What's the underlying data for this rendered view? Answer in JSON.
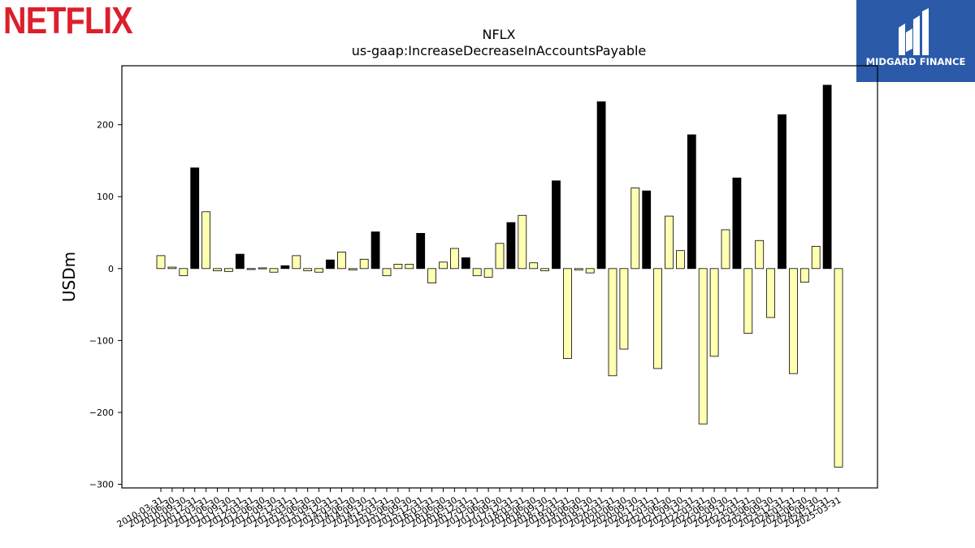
{
  "logos": {
    "left_text": "NETFLIX",
    "left_color": "#db202c",
    "right_text": "MIDGARD FINANCE",
    "right_color": "#2a5aa8"
  },
  "chart_data": {
    "type": "bar",
    "title": "NFLX",
    "subtitle": "us-gaap:IncreaseDecreaseInAccountsPayable",
    "xlabel": "",
    "ylabel": "USDm",
    "ylim": [
      -305,
      282
    ],
    "yticks": [
      -300,
      -200,
      -100,
      0,
      100,
      200
    ],
    "grid": false,
    "bar_colors": {
      "quarterly": "#ffffb2",
      "annual": "#000000"
    },
    "categories": [
      "2010-03-31",
      "2010-06-30",
      "2010-09-30",
      "2010-12-31",
      "2011-03-31",
      "2011-06-30",
      "2011-09-30",
      "2011-12-31",
      "2012-03-31",
      "2012-06-30",
      "2012-09-30",
      "2012-12-31",
      "2013-03-31",
      "2013-06-30",
      "2013-09-30",
      "2013-12-31",
      "2014-03-31",
      "2014-06-30",
      "2014-09-30",
      "2014-12-31",
      "2015-03-31",
      "2015-06-30",
      "2015-09-30",
      "2015-12-31",
      "2016-03-31",
      "2016-06-30",
      "2016-09-30",
      "2016-12-31",
      "2017-03-31",
      "2017-06-30",
      "2017-09-30",
      "2017-12-31",
      "2018-03-31",
      "2018-06-30",
      "2018-09-30",
      "2018-12-31",
      "2019-03-31",
      "2019-06-30",
      "2019-09-30",
      "2019-12-31",
      "2020-03-31",
      "2020-06-30",
      "2020-09-30",
      "2020-12-31",
      "2021-03-31",
      "2021-06-30",
      "2021-09-30",
      "2021-12-31",
      "2022-03-31",
      "2022-06-30",
      "2022-09-30",
      "2022-12-31",
      "2023-03-31",
      "2023-06-30",
      "2023-09-30",
      "2023-12-31",
      "2024-03-31",
      "2024-06-30",
      "2024-09-30",
      "2024-12-31",
      "2025-03-31"
    ],
    "values": [
      18,
      2,
      -10,
      140,
      79,
      -3,
      -4,
      20,
      -1,
      1,
      -5,
      4,
      18,
      -3,
      -5,
      12,
      23,
      -2,
      13,
      51,
      -10,
      6,
      6,
      49,
      -20,
      9,
      28,
      15,
      -10,
      -12,
      35,
      64,
      74,
      8,
      -3,
      122,
      -125,
      -2,
      -6,
      232,
      -149,
      -112,
      112,
      108,
      -139,
      73,
      25,
      186,
      -216,
      -122,
      54,
      126,
      -90,
      39,
      -68,
      214,
      -146,
      -19,
      31,
      255,
      -276
    ],
    "annual_flags": [
      false,
      false,
      false,
      true,
      false,
      false,
      false,
      true,
      false,
      false,
      false,
      true,
      false,
      false,
      false,
      true,
      false,
      false,
      false,
      true,
      false,
      false,
      false,
      true,
      false,
      false,
      false,
      true,
      false,
      false,
      false,
      true,
      false,
      false,
      false,
      true,
      false,
      false,
      false,
      true,
      false,
      false,
      false,
      true,
      false,
      false,
      false,
      true,
      false,
      false,
      false,
      true,
      false,
      false,
      false,
      true,
      false,
      false,
      false,
      true,
      false
    ]
  }
}
